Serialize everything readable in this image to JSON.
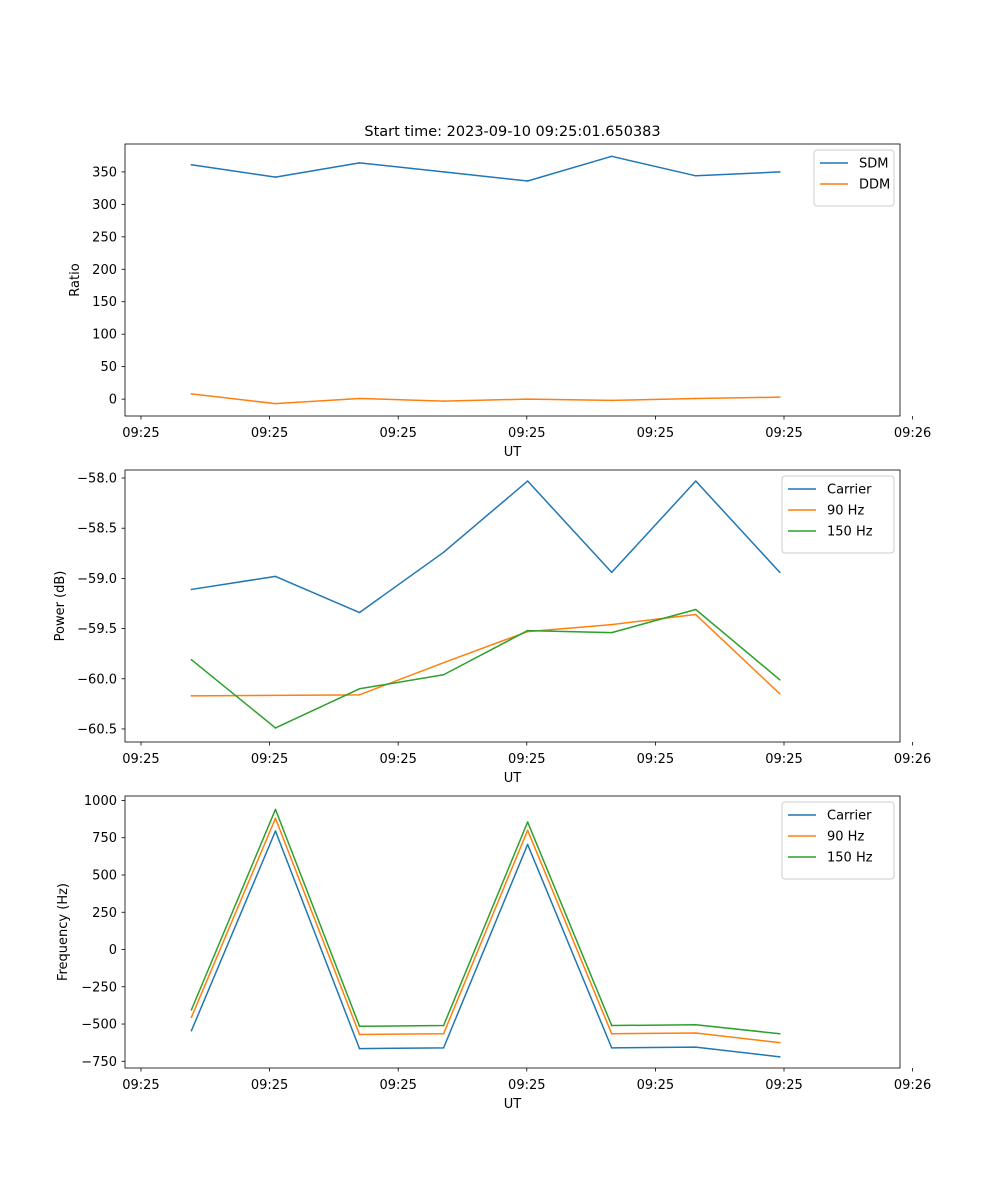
{
  "figure": {
    "title": "Start time: 2023-09-10 09:25:01.650383"
  },
  "colors": {
    "blue": "#1f77b4",
    "orange": "#ff7f0e",
    "green": "#2ca02c"
  },
  "chart_data": [
    {
      "type": "line",
      "title": "Start time: 2023-09-10 09:25:01.650383",
      "xlabel": "UT",
      "ylabel": "Ratio",
      "x": [
        1,
        2,
        3,
        4,
        5,
        6,
        7,
        8
      ],
      "xlim": [
        0.21,
        9.43
      ],
      "xticks": [
        {
          "v": 0.4,
          "label": "09:25"
        },
        {
          "v": 1.93,
          "label": "09:25"
        },
        {
          "v": 3.46,
          "label": "09:25"
        },
        {
          "v": 4.99,
          "label": "09:25"
        },
        {
          "v": 6.52,
          "label": "09:25"
        },
        {
          "v": 8.05,
          "label": "09:25"
        },
        {
          "v": 9.58,
          "label": "09:26"
        }
      ],
      "ylim": [
        -26,
        393
      ],
      "yticks": [
        0,
        50,
        100,
        150,
        200,
        250,
        300,
        350
      ],
      "ytick_labels": [
        "0",
        "50",
        "100",
        "150",
        "200",
        "250",
        "300",
        "350"
      ],
      "legend_position": "top-right",
      "series": [
        {
          "name": "SDM",
          "color": "#1f77b4",
          "values": [
            361,
            342,
            364,
            350,
            336,
            374,
            344,
            350
          ]
        },
        {
          "name": "DDM",
          "color": "#ff7f0e",
          "values": [
            8,
            -7,
            1,
            -3,
            0,
            -2,
            1,
            3
          ]
        }
      ]
    },
    {
      "type": "line",
      "xlabel": "UT",
      "ylabel": "Power (dB)",
      "x": [
        1,
        2,
        3,
        4,
        5,
        6,
        7,
        8
      ],
      "xlim": [
        0.21,
        9.43
      ],
      "xticks": [
        {
          "v": 0.4,
          "label": "09:25"
        },
        {
          "v": 1.93,
          "label": "09:25"
        },
        {
          "v": 3.46,
          "label": "09:25"
        },
        {
          "v": 4.99,
          "label": "09:25"
        },
        {
          "v": 6.52,
          "label": "09:25"
        },
        {
          "v": 8.05,
          "label": "09:25"
        },
        {
          "v": 9.58,
          "label": "09:26"
        }
      ],
      "ylim": [
        -60.63,
        -57.92
      ],
      "yticks": [
        -60.5,
        -60.0,
        -59.5,
        -59.0,
        -58.5,
        -58.0
      ],
      "ytick_labels": [
        "−60.5",
        "−60.0",
        "−59.5",
        "−59.0",
        "−58.5",
        "−58.0"
      ],
      "legend_position": "top-right",
      "series": [
        {
          "name": "Carrier",
          "color": "#1f77b4",
          "values": [
            -59.11,
            -58.98,
            -59.34,
            -58.74,
            -58.03,
            -58.94,
            -58.03,
            -58.94
          ]
        },
        {
          "name": "90 Hz",
          "color": "#ff7f0e",
          "values": [
            -60.17,
            -60.165,
            -60.16,
            -59.84,
            -59.53,
            -59.46,
            -59.36,
            -60.15
          ]
        },
        {
          "name": "150 Hz",
          "color": "#2ca02c",
          "values": [
            -59.81,
            -60.49,
            -60.1,
            -59.96,
            -59.52,
            -59.54,
            -59.31,
            -60.01
          ]
        }
      ]
    },
    {
      "type": "line",
      "xlabel": "UT",
      "ylabel": "Frequency (Hz)",
      "x": [
        1,
        2,
        3,
        4,
        5,
        6,
        7,
        8
      ],
      "xlim": [
        0.21,
        9.43
      ],
      "xticks": [
        {
          "v": 0.4,
          "label": "09:25"
        },
        {
          "v": 1.93,
          "label": "09:25"
        },
        {
          "v": 3.46,
          "label": "09:25"
        },
        {
          "v": 4.99,
          "label": "09:25"
        },
        {
          "v": 6.52,
          "label": "09:25"
        },
        {
          "v": 8.05,
          "label": "09:25"
        },
        {
          "v": 9.58,
          "label": "09:26"
        }
      ],
      "ylim": [
        -795,
        1030
      ],
      "yticks": [
        -750,
        -500,
        -250,
        0,
        250,
        500,
        750,
        1000
      ],
      "ytick_labels": [
        "−750",
        "−500",
        "−250",
        "0",
        "250",
        "500",
        "750",
        "1000"
      ],
      "legend_position": "top-right",
      "series": [
        {
          "name": "Carrier",
          "color": "#1f77b4",
          "values": [
            -545,
            795,
            -665,
            -660,
            705,
            -660,
            -655,
            -720
          ]
        },
        {
          "name": "90 Hz",
          "color": "#ff7f0e",
          "values": [
            -455,
            880,
            -570,
            -565,
            800,
            -565,
            -560,
            -625
          ]
        },
        {
          "name": "150 Hz",
          "color": "#2ca02c",
          "values": [
            -405,
            940,
            -515,
            -510,
            855,
            -510,
            -505,
            -565
          ]
        }
      ]
    }
  ]
}
